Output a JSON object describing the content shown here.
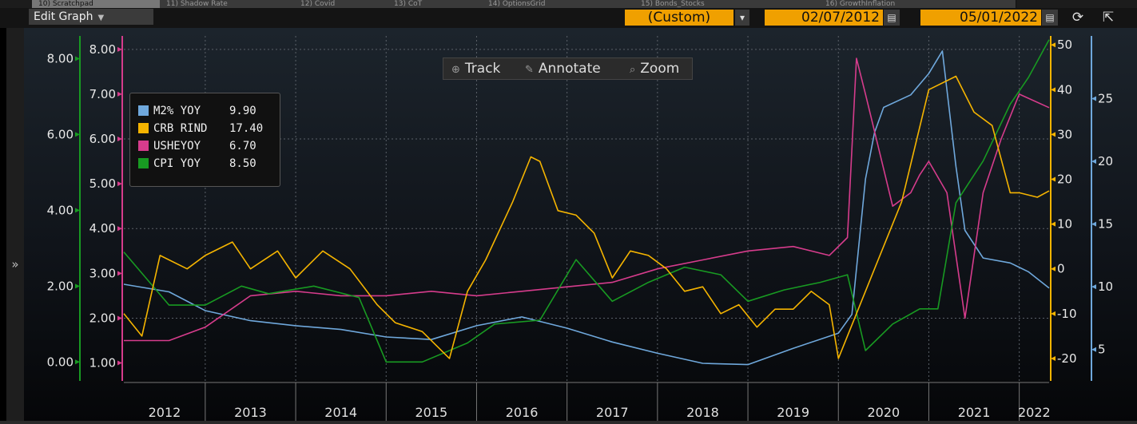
{
  "tabs": [
    {
      "label": "10) Scratchpad",
      "active": true
    },
    {
      "label": "11) Shadow Rate",
      "active": false
    },
    {
      "label": "12) Covid",
      "active": false
    },
    {
      "label": "13) CoT",
      "active": false
    },
    {
      "label": "14) OptionsGrid",
      "active": false
    },
    {
      "label": "15) Bonds_Stocks",
      "active": false
    },
    {
      "label": "16) GrowthInflation",
      "active": false
    }
  ],
  "toolbar": {
    "edit_graph_label": "Edit Graph",
    "period_value": "(Custom)",
    "start_date": "02/07/2012",
    "end_date": "05/01/2022"
  },
  "overlay": {
    "track_label": "Track",
    "annotate_label": "Annotate",
    "zoom_label": "Zoom"
  },
  "legend": [
    {
      "name": "M2% YOY",
      "value": "9.90",
      "color": "#6fa8dc"
    },
    {
      "name": "CRB RIND",
      "value": "17.40",
      "color": "#f5b400"
    },
    {
      "name": "USHEYOY",
      "value": "6.70",
      "color": "#d63c8c"
    },
    {
      "name": "CPI YOY",
      "value": "8.50",
      "color": "#189a22"
    }
  ],
  "colors": {
    "m2": "#6fa8dc",
    "crb": "#f5b400",
    "ushe": "#d63c8c",
    "cpi": "#189a22"
  },
  "chart_data": {
    "type": "line",
    "x_range": [
      "2012-02-07",
      "2022-05-01"
    ],
    "year_labels": [
      "2012",
      "2013",
      "2014",
      "2015",
      "2016",
      "2017",
      "2018",
      "2019",
      "2020",
      "2021",
      "2022"
    ],
    "axes": {
      "cpi_axis": {
        "ticks": [
          "0.00",
          "2.00",
          "4.00",
          "6.00",
          "8.00"
        ],
        "range": [
          -0.5,
          8.6
        ]
      },
      "ushe_axis": {
        "ticks": [
          "1.00",
          "2.00",
          "3.00",
          "4.00",
          "5.00",
          "6.00",
          "7.00",
          "8.00"
        ],
        "range": [
          0.6,
          8.3
        ]
      },
      "crb_axis": {
        "ticks": [
          "-20",
          "-10",
          "0",
          "10",
          "20",
          "30",
          "40",
          "50"
        ],
        "range": [
          -25,
          52
        ]
      },
      "m2_axis": {
        "ticks": [
          "5",
          "10",
          "15",
          "20",
          "25"
        ],
        "range": [
          2.5,
          30
        ]
      }
    },
    "series": [
      {
        "name": "M2% YOY",
        "axis": "m2_axis",
        "x": [
          2012.1,
          2012.6,
          2013.0,
          2013.5,
          2014.0,
          2014.5,
          2015.0,
          2015.5,
          2016.0,
          2016.5,
          2017.0,
          2017.5,
          2018.0,
          2018.5,
          2019.0,
          2019.5,
          2020.0,
          2020.15,
          2020.3,
          2020.4,
          2020.5,
          2020.8,
          2021.0,
          2021.15,
          2021.3,
          2021.4,
          2021.6,
          2021.9,
          2022.1,
          2022.33
        ],
        "y": [
          10.2,
          9.6,
          8.1,
          7.3,
          6.9,
          6.6,
          6.0,
          5.8,
          6.9,
          7.6,
          6.7,
          5.6,
          4.7,
          3.9,
          3.8,
          5.1,
          6.3,
          7.8,
          18.6,
          22.3,
          24.3,
          25.3,
          27.0,
          28.8,
          19.6,
          14.5,
          12.3,
          11.9,
          11.2,
          9.9
        ]
      },
      {
        "name": "CRB RIND",
        "axis": "crb_axis",
        "x": [
          2012.1,
          2012.3,
          2012.5,
          2012.8,
          2013.0,
          2013.3,
          2013.5,
          2013.8,
          2014.0,
          2014.3,
          2014.6,
          2014.9,
          2015.1,
          2015.4,
          2015.7,
          2015.9,
          2016.1,
          2016.4,
          2016.6,
          2016.7,
          2016.9,
          2017.1,
          2017.3,
          2017.5,
          2017.7,
          2017.9,
          2018.1,
          2018.3,
          2018.5,
          2018.7,
          2018.9,
          2019.1,
          2019.3,
          2019.5,
          2019.7,
          2019.9,
          2020.0,
          2020.2,
          2020.4,
          2020.7,
          2021.0,
          2021.3,
          2021.5,
          2021.7,
          2021.9,
          2022.0,
          2022.2,
          2022.33
        ],
        "y": [
          -10,
          -15,
          3,
          0,
          3,
          6,
          0,
          4,
          -2,
          4,
          0,
          -8,
          -12,
          -14,
          -20,
          -5,
          2,
          15,
          25,
          24,
          13,
          12,
          8,
          -2,
          4,
          3,
          0,
          -5,
          -4,
          -10,
          -8,
          -13,
          -9,
          -9,
          -5,
          -8,
          -20,
          -10,
          0,
          15,
          40,
          43,
          35,
          32,
          17,
          17,
          16,
          17.4
        ]
      },
      {
        "name": "USHEYOY",
        "axis": "ushe_axis",
        "x": [
          2012.1,
          2012.6,
          2013.0,
          2013.5,
          2014.0,
          2014.5,
          2015.0,
          2015.5,
          2016.0,
          2016.5,
          2017.0,
          2017.5,
          2018.0,
          2018.5,
          2019.0,
          2019.5,
          2019.9,
          2020.1,
          2020.2,
          2020.3,
          2020.6,
          2020.8,
          2020.9,
          2021.0,
          2021.2,
          2021.4,
          2021.6,
          2021.8,
          2022.0,
          2022.33
        ],
        "y": [
          1.5,
          1.5,
          1.8,
          2.5,
          2.6,
          2.5,
          2.5,
          2.6,
          2.5,
          2.6,
          2.7,
          2.8,
          3.1,
          3.3,
          3.5,
          3.6,
          3.4,
          3.8,
          7.8,
          7.0,
          4.5,
          4.8,
          5.2,
          5.5,
          4.8,
          2.0,
          4.8,
          6.0,
          7.0,
          6.7
        ]
      },
      {
        "name": "CPI YOY",
        "axis": "cpi_axis",
        "x": [
          2012.1,
          2012.6,
          2013.0,
          2013.4,
          2013.7,
          2014.2,
          2014.7,
          2015.0,
          2015.4,
          2015.9,
          2016.2,
          2016.7,
          2017.1,
          2017.5,
          2017.9,
          2018.3,
          2018.7,
          2019.0,
          2019.4,
          2019.8,
          2020.1,
          2020.3,
          2020.6,
          2020.9,
          2021.1,
          2021.3,
          2021.6,
          2021.9,
          2022.1,
          2022.33
        ],
        "y": [
          2.9,
          1.5,
          1.5,
          2.0,
          1.8,
          2.0,
          1.7,
          0.0,
          0.0,
          0.5,
          1.0,
          1.1,
          2.7,
          1.6,
          2.1,
          2.5,
          2.3,
          1.6,
          1.9,
          2.1,
          2.3,
          0.3,
          1.0,
          1.4,
          1.4,
          4.2,
          5.3,
          6.8,
          7.5,
          8.5
        ]
      }
    ]
  }
}
